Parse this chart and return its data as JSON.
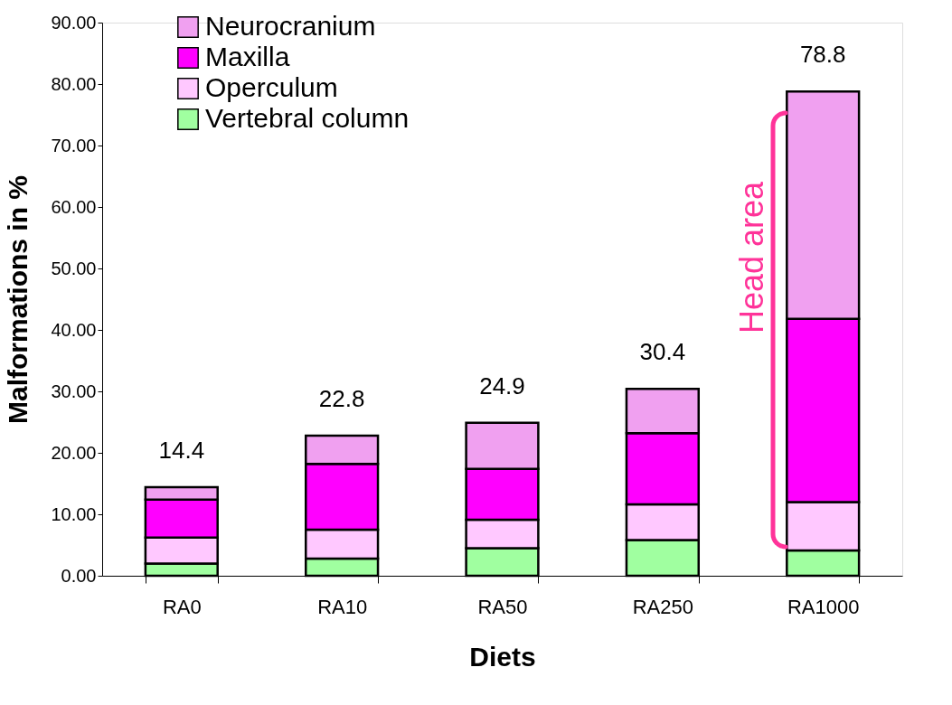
{
  "chart_data": {
    "type": "bar",
    "stacked": true,
    "xlabel": "Diets",
    "ylabel": "Malformations in %",
    "categories": [
      "RA0",
      "RA10",
      "RA50",
      "RA250",
      "RA1000"
    ],
    "series": [
      {
        "name": "Vertebral column",
        "color": "#a0ffa0",
        "values": [
          2.0,
          2.8,
          4.5,
          5.8,
          4.1
        ]
      },
      {
        "name": "Operculum",
        "color": "#ffc8ff",
        "values": [
          4.2,
          4.7,
          4.6,
          5.8,
          7.9
        ]
      },
      {
        "name": "Maxilla",
        "color": "#ff00ff",
        "values": [
          6.2,
          10.7,
          8.3,
          11.6,
          29.8
        ]
      },
      {
        "name": "Neurocranium",
        "color": "#f0a0f0",
        "values": [
          2.0,
          4.6,
          7.5,
          7.2,
          37.0
        ]
      }
    ],
    "totals": [
      "14.4",
      "22.8",
      "24.9",
      "30.4",
      "78.8"
    ],
    "ylim": [
      0,
      90
    ],
    "yticks": [
      {
        "value": 0,
        "label": "0.00"
      },
      {
        "value": 10,
        "label": "10.00"
      },
      {
        "value": 20,
        "label": "20.00"
      },
      {
        "value": 30,
        "label": "30.00"
      },
      {
        "value": 40,
        "label": "40.00"
      },
      {
        "value": 50,
        "label": "50.00"
      },
      {
        "value": 60,
        "label": "60.00"
      },
      {
        "value": 70,
        "label": "70.00"
      },
      {
        "value": 80,
        "label": "80.00"
      },
      {
        "value": 90,
        "label": "90.00"
      }
    ],
    "annotations": [
      "Head area"
    ],
    "legend": "top left",
    "grid": false
  }
}
